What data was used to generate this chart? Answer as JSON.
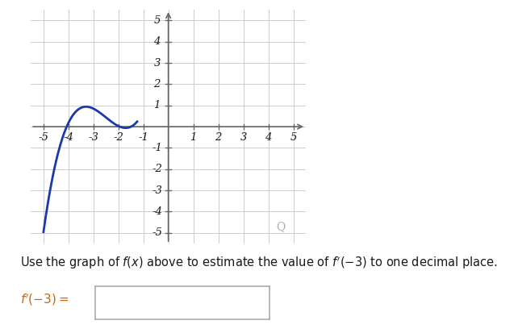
{
  "xlim": [
    -5.5,
    5.5
  ],
  "ylim": [
    -5.5,
    5.5
  ],
  "curve_color": "#1a3aaa",
  "curve_linewidth": 2.0,
  "grid_color": "#cccccc",
  "grid_linewidth": 0.7,
  "axis_color": "#666666",
  "background_color": "#ffffff",
  "text_color": "#1a1a1a",
  "label_text": "Use the graph of $f(x)$ above to estimate the value of $f'(- 3)$ to one decimal place.",
  "input_label": "$f'(-3) =$",
  "figsize": [
    6.37,
    4.08
  ],
  "dpi": 100,
  "cubic_a": 0.5,
  "cubic_b": 3.75,
  "cubic_c": 9.5,
  "cubic_d": 8.1,
  "x_start": -5.0,
  "x_end": -1.22
}
